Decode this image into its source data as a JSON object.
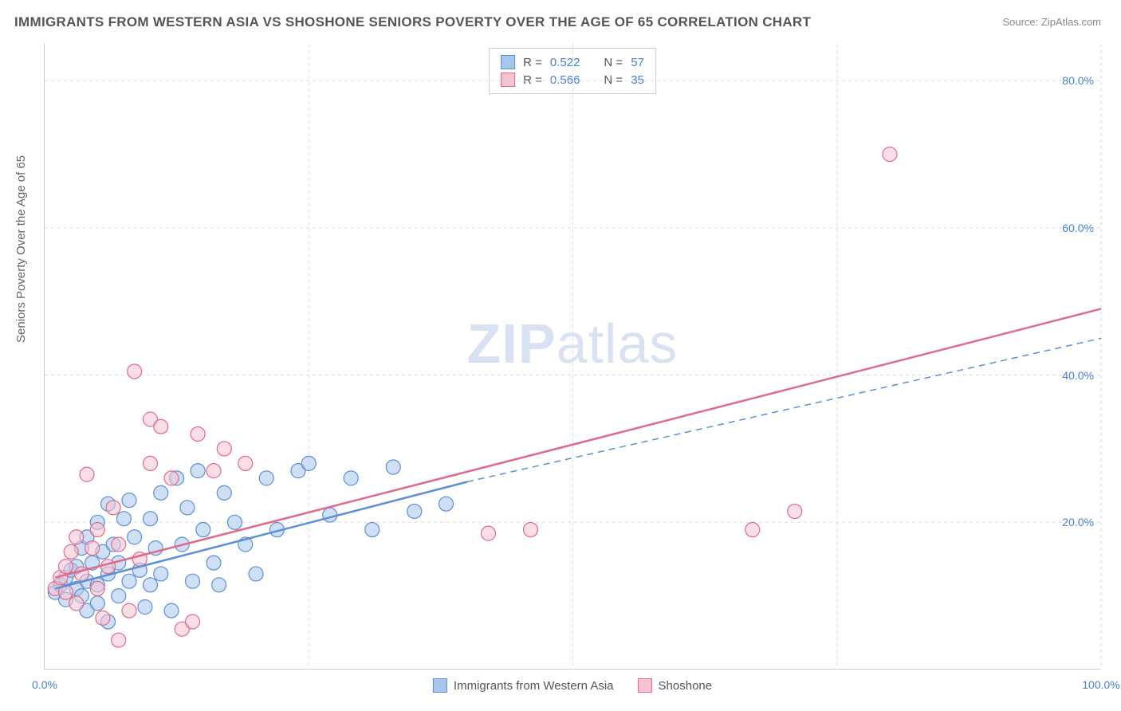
{
  "title": "IMMIGRANTS FROM WESTERN ASIA VS SHOSHONE SENIORS POVERTY OVER THE AGE OF 65 CORRELATION CHART",
  "source": "Source: ZipAtlas.com",
  "watermark_zip": "ZIP",
  "watermark_atlas": "atlas",
  "watermark_color": "#d8e2f2",
  "y_axis_label": "Seniors Poverty Over the Age of 65",
  "chart": {
    "type": "scatter",
    "xlim": [
      0,
      100
    ],
    "ylim": [
      0,
      85
    ],
    "x_ticks": [
      0,
      100
    ],
    "x_tick_labels": [
      "0.0%",
      "100.0%"
    ],
    "y_ticks": [
      20,
      40,
      60,
      80
    ],
    "y_tick_labels": [
      "20.0%",
      "40.0%",
      "60.0%",
      "80.0%"
    ],
    "y_minor_grid": [
      20,
      40,
      60,
      80
    ],
    "x_minor_grid": [
      25,
      50,
      75,
      100
    ],
    "background_color": "#ffffff",
    "grid_color": "#dddddd",
    "axis_color": "#cccccc",
    "tick_label_color": "#4a7fd8",
    "axis_label_color": "#666666",
    "point_radius": 9,
    "point_opacity": 0.55,
    "series": [
      {
        "name": "Immigrants from Western Asia",
        "color_fill": "#a8c5ed",
        "color_stroke": "#5b8fd6",
        "R": "0.522",
        "N": "57",
        "trend": {
          "x1": 1,
          "y1": 11,
          "x2": 40,
          "y2": 25.5,
          "width": 2.5,
          "dash_ext_x2": 100,
          "dash_ext_y2": 45
        },
        "points": [
          [
            1,
            10.5
          ],
          [
            1.5,
            11.5
          ],
          [
            2,
            9.5
          ],
          [
            2,
            12.5
          ],
          [
            2.5,
            13.5
          ],
          [
            3,
            11
          ],
          [
            3,
            14
          ],
          [
            3.5,
            10
          ],
          [
            3.5,
            16.5
          ],
          [
            4,
            8
          ],
          [
            4,
            12
          ],
          [
            4,
            18
          ],
          [
            4.5,
            14.5
          ],
          [
            5,
            9
          ],
          [
            5,
            11.5
          ],
          [
            5,
            20
          ],
          [
            5.5,
            16
          ],
          [
            6,
            6.5
          ],
          [
            6,
            13
          ],
          [
            6,
            22.5
          ],
          [
            6.5,
            17
          ],
          [
            7,
            10
          ],
          [
            7,
            14.5
          ],
          [
            7.5,
            20.5
          ],
          [
            8,
            12
          ],
          [
            8,
            23
          ],
          [
            8.5,
            18
          ],
          [
            9,
            13.5
          ],
          [
            9.5,
            8.5
          ],
          [
            10,
            20.5
          ],
          [
            10,
            11.5
          ],
          [
            10.5,
            16.5
          ],
          [
            11,
            24
          ],
          [
            11,
            13
          ],
          [
            12,
            8
          ],
          [
            12.5,
            26
          ],
          [
            13,
            17
          ],
          [
            13.5,
            22
          ],
          [
            14,
            12
          ],
          [
            14.5,
            27
          ],
          [
            15,
            19
          ],
          [
            16,
            14.5
          ],
          [
            16.5,
            11.5
          ],
          [
            17,
            24
          ],
          [
            18,
            20
          ],
          [
            19,
            17
          ],
          [
            20,
            13
          ],
          [
            21,
            26
          ],
          [
            22,
            19
          ],
          [
            24,
            27
          ],
          [
            25,
            28
          ],
          [
            27,
            21
          ],
          [
            29,
            26
          ],
          [
            31,
            19
          ],
          [
            33,
            27.5
          ],
          [
            35,
            21.5
          ],
          [
            38,
            22.5
          ]
        ]
      },
      {
        "name": "Shoshone",
        "color_fill": "#f5c3cf",
        "color_stroke": "#e06a88",
        "R": "0.566",
        "N": "35",
        "trend": {
          "x1": 1,
          "y1": 12.5,
          "x2": 100,
          "y2": 49,
          "width": 2.5
        },
        "points": [
          [
            1,
            11
          ],
          [
            1.5,
            12.5
          ],
          [
            2,
            10.5
          ],
          [
            2,
            14
          ],
          [
            2.5,
            16
          ],
          [
            3,
            9
          ],
          [
            3,
            18
          ],
          [
            3.5,
            13
          ],
          [
            4,
            26.5
          ],
          [
            4.5,
            16.5
          ],
          [
            5,
            19
          ],
          [
            5,
            11
          ],
          [
            5.5,
            7
          ],
          [
            6,
            14
          ],
          [
            6.5,
            22
          ],
          [
            7,
            4
          ],
          [
            7,
            17
          ],
          [
            8,
            8
          ],
          [
            8.5,
            40.5
          ],
          [
            9,
            15
          ],
          [
            10,
            34
          ],
          [
            10,
            28
          ],
          [
            11,
            33
          ],
          [
            12,
            26
          ],
          [
            13,
            5.5
          ],
          [
            14,
            6.5
          ],
          [
            14.5,
            32
          ],
          [
            16,
            27
          ],
          [
            17,
            30
          ],
          [
            19,
            28
          ],
          [
            42,
            18.5
          ],
          [
            46,
            19
          ],
          [
            67,
            19
          ],
          [
            71,
            21.5
          ],
          [
            80,
            70
          ]
        ]
      }
    ]
  },
  "legend_bottom": {
    "s1": "Immigrants from Western Asia",
    "s2": "Shoshone"
  }
}
